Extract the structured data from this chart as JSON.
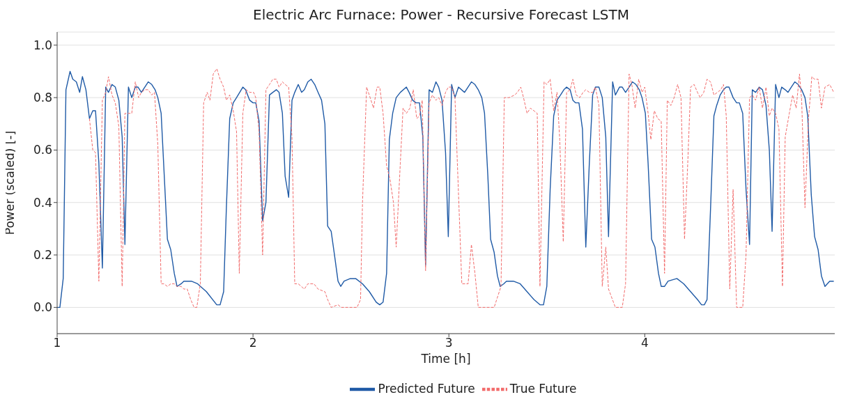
{
  "chart_data": {
    "type": "line",
    "title": "Electric Arc Furnace: Power - Recursive Forecast LSTM",
    "xlabel": "Time [h]",
    "ylabel": "Power (scaled) [-]",
    "xlim": [
      1,
      4.97
    ],
    "xticks": [
      1,
      2,
      3,
      4
    ],
    "ylim": [
      -0.1,
      1.05
    ],
    "yticks": [
      {
        "value": 0,
        "label": "0.0"
      },
      {
        "value": 0.2,
        "label": "0.2"
      },
      {
        "value": 0.4,
        "label": "0.4"
      },
      {
        "value": 0.6,
        "label": "0.6"
      },
      {
        "value": 0.8,
        "label": "0.8"
      },
      {
        "value": 1,
        "label": "1.0"
      }
    ],
    "grid": "y",
    "legend": "bottom",
    "marker": "none",
    "series": [
      {
        "name": "Predicted Future",
        "color": "#1f5aa6",
        "line_style": "solid",
        "x": [
          1.0,
          1.014,
          1.031,
          1.045,
          1.066,
          1.08,
          1.098,
          1.115,
          1.129,
          1.147,
          1.165,
          1.182,
          1.196,
          1.213,
          1.231,
          1.248,
          1.262,
          1.28,
          1.297,
          1.315,
          1.332,
          1.346,
          1.364,
          1.381,
          1.399,
          1.413,
          1.43,
          1.465,
          1.483,
          1.5,
          1.514,
          1.531,
          1.563,
          1.58,
          1.598,
          1.612,
          1.633,
          1.647,
          1.685,
          1.717,
          1.762,
          1.815,
          1.832,
          1.85,
          1.864,
          1.881,
          1.899,
          1.916,
          1.948,
          1.962,
          1.983,
          2.0,
          2.014,
          2.031,
          2.049,
          2.066,
          2.084,
          2.101,
          2.119,
          2.133,
          2.15,
          2.164,
          2.182,
          2.199,
          2.213,
          2.231,
          2.248,
          2.262,
          2.28,
          2.297,
          2.315,
          2.332,
          2.35,
          2.367,
          2.381,
          2.399,
          2.416,
          2.434,
          2.448,
          2.465,
          2.497,
          2.524,
          2.559,
          2.594,
          2.629,
          2.647,
          2.664,
          2.682,
          2.696,
          2.713,
          2.731,
          2.752,
          2.783,
          2.797,
          2.815,
          2.832,
          2.85,
          2.867,
          2.881,
          2.899,
          2.916,
          2.934,
          2.948,
          2.965,
          2.983,
          2.997,
          3.014,
          3.031,
          3.049,
          3.08,
          3.115,
          3.133,
          3.15,
          3.168,
          3.182,
          3.199,
          3.213,
          3.231,
          3.248,
          3.262,
          3.28,
          3.294,
          3.329,
          3.364,
          3.399,
          3.434,
          3.465,
          3.483,
          3.5,
          3.517,
          3.535,
          3.552,
          3.57,
          3.587,
          3.601,
          3.619,
          3.633,
          3.647,
          3.664,
          3.682,
          3.699,
          3.717,
          3.734,
          3.748,
          3.766,
          3.783,
          3.801,
          3.815,
          3.836,
          3.85,
          3.871,
          3.885,
          3.902,
          3.92,
          3.937,
          3.955,
          3.972,
          3.986,
          4.003,
          4.017,
          4.035,
          4.052,
          4.07,
          4.084,
          4.101,
          4.119,
          4.164,
          4.199,
          4.234,
          4.269,
          4.29,
          4.304,
          4.318,
          4.336,
          4.353,
          4.367,
          4.385,
          4.402,
          4.416,
          4.43,
          4.451,
          4.469,
          4.483,
          4.5,
          4.517,
          4.535,
          4.549,
          4.566,
          4.584,
          4.601,
          4.619,
          4.636,
          4.65,
          4.668,
          4.685,
          4.699,
          4.717,
          4.731,
          4.748,
          4.766,
          4.783,
          4.801,
          4.818,
          4.832,
          4.85,
          4.867,
          4.885,
          4.902,
          4.92,
          4.944,
          4.965
        ],
        "values": [
          0.0,
          0.0,
          0.11,
          0.83,
          0.9,
          0.87,
          0.86,
          0.82,
          0.88,
          0.83,
          0.72,
          0.75,
          0.75,
          0.55,
          0.15,
          0.84,
          0.82,
          0.85,
          0.84,
          0.79,
          0.65,
          0.24,
          0.84,
          0.8,
          0.84,
          0.84,
          0.82,
          0.86,
          0.85,
          0.83,
          0.8,
          0.74,
          0.26,
          0.22,
          0.13,
          0.08,
          0.09,
          0.1,
          0.1,
          0.09,
          0.06,
          0.01,
          0.01,
          0.06,
          0.38,
          0.72,
          0.78,
          0.8,
          0.84,
          0.83,
          0.79,
          0.78,
          0.78,
          0.71,
          0.33,
          0.4,
          0.81,
          0.82,
          0.83,
          0.82,
          0.74,
          0.5,
          0.42,
          0.79,
          0.82,
          0.85,
          0.82,
          0.83,
          0.86,
          0.87,
          0.85,
          0.82,
          0.79,
          0.7,
          0.31,
          0.29,
          0.2,
          0.1,
          0.08,
          0.1,
          0.11,
          0.11,
          0.09,
          0.06,
          0.02,
          0.01,
          0.02,
          0.13,
          0.64,
          0.74,
          0.8,
          0.82,
          0.84,
          0.82,
          0.79,
          0.78,
          0.78,
          0.65,
          0.16,
          0.83,
          0.82,
          0.86,
          0.84,
          0.79,
          0.59,
          0.27,
          0.85,
          0.8,
          0.84,
          0.82,
          0.86,
          0.85,
          0.83,
          0.8,
          0.74,
          0.5,
          0.26,
          0.21,
          0.12,
          0.08,
          0.09,
          0.1,
          0.1,
          0.09,
          0.06,
          0.03,
          0.01,
          0.01,
          0.08,
          0.45,
          0.73,
          0.79,
          0.81,
          0.83,
          0.84,
          0.83,
          0.79,
          0.78,
          0.78,
          0.68,
          0.23,
          0.55,
          0.81,
          0.84,
          0.84,
          0.8,
          0.65,
          0.27,
          0.86,
          0.81,
          0.84,
          0.84,
          0.82,
          0.84,
          0.86,
          0.85,
          0.83,
          0.8,
          0.74,
          0.55,
          0.26,
          0.23,
          0.13,
          0.08,
          0.08,
          0.1,
          0.11,
          0.09,
          0.06,
          0.03,
          0.01,
          0.01,
          0.03,
          0.38,
          0.73,
          0.77,
          0.81,
          0.83,
          0.84,
          0.84,
          0.8,
          0.78,
          0.78,
          0.74,
          0.45,
          0.24,
          0.83,
          0.82,
          0.84,
          0.83,
          0.77,
          0.6,
          0.29,
          0.85,
          0.8,
          0.84,
          0.83,
          0.82,
          0.84,
          0.86,
          0.85,
          0.83,
          0.8,
          0.73,
          0.43,
          0.27,
          0.22,
          0.12,
          0.08,
          0.1,
          0.1
        ]
      },
      {
        "name": "True Future",
        "color": "#f26b6b",
        "line_style": "dashed",
        "x": [
          1.165,
          1.182,
          1.196,
          1.213,
          1.231,
          1.248,
          1.262,
          1.28,
          1.297,
          1.315,
          1.332,
          1.346,
          1.364,
          1.381,
          1.399,
          1.416,
          1.43,
          1.448,
          1.465,
          1.483,
          1.497,
          1.514,
          1.531,
          1.545,
          1.563,
          1.58,
          1.598,
          1.612,
          1.633,
          1.647,
          1.664,
          1.682,
          1.699,
          1.713,
          1.731,
          1.748,
          1.766,
          1.78,
          1.797,
          1.815,
          1.832,
          1.85,
          1.864,
          1.881,
          1.899,
          1.916,
          1.93,
          1.948,
          1.965,
          1.983,
          2.003,
          2.014,
          2.031,
          2.049,
          2.066,
          2.084,
          2.101,
          2.119,
          2.133,
          2.15,
          2.164,
          2.182,
          2.199,
          2.213,
          2.231,
          2.262,
          2.28,
          2.311,
          2.332,
          2.367,
          2.381,
          2.399,
          2.434,
          2.451,
          2.531,
          2.549,
          2.559,
          2.58,
          2.598,
          2.615,
          2.633,
          2.647,
          2.664,
          2.682,
          2.699,
          2.717,
          2.731,
          2.752,
          2.766,
          2.783,
          2.801,
          2.818,
          2.836,
          2.85,
          2.864,
          2.881,
          2.899,
          2.916,
          2.934,
          2.948,
          2.965,
          2.983,
          2.997,
          3.014,
          3.031,
          3.066,
          3.098,
          3.115,
          3.133,
          3.15,
          3.231,
          3.266,
          3.283,
          3.308,
          3.336,
          3.35,
          3.367,
          3.381,
          3.399,
          3.416,
          3.434,
          3.451,
          3.465,
          3.486,
          3.5,
          3.517,
          3.535,
          3.552,
          3.566,
          3.584,
          3.601,
          3.619,
          3.633,
          3.65,
          3.668,
          3.685,
          3.699,
          3.717,
          3.734,
          3.748,
          3.766,
          3.783,
          3.801,
          3.815,
          3.85,
          3.885,
          3.902,
          3.92,
          3.934,
          3.951,
          3.969,
          3.986,
          4.0,
          4.017,
          4.031,
          4.049,
          4.066,
          4.084,
          4.101,
          4.115,
          4.133,
          4.15,
          4.168,
          4.185,
          4.203,
          4.22,
          4.234,
          4.252,
          4.269,
          4.283,
          4.301,
          4.318,
          4.336,
          4.353,
          4.371,
          4.388,
          4.402,
          4.416,
          4.434,
          4.451,
          4.469,
          4.5,
          4.517,
          4.535,
          4.549,
          4.566,
          4.584,
          4.601,
          4.619,
          4.636,
          4.65,
          4.668,
          4.685,
          4.703,
          4.717,
          4.738,
          4.755,
          4.773,
          4.79,
          4.801,
          4.818,
          4.836,
          4.853,
          4.867,
          4.885,
          4.902,
          4.92,
          4.944,
          4.965
        ],
        "values": [
          0.72,
          0.6,
          0.59,
          0.1,
          0.79,
          0.82,
          0.88,
          0.81,
          0.78,
          0.69,
          0.08,
          0.74,
          0.74,
          0.74,
          0.86,
          0.8,
          0.82,
          0.83,
          0.83,
          0.81,
          0.82,
          0.62,
          0.09,
          0.09,
          0.08,
          0.09,
          0.09,
          0.08,
          0.08,
          0.07,
          0.07,
          0.03,
          0.0,
          0.0,
          0.09,
          0.78,
          0.82,
          0.79,
          0.89,
          0.91,
          0.87,
          0.84,
          0.79,
          0.81,
          0.75,
          0.67,
          0.13,
          0.74,
          0.83,
          0.82,
          0.82,
          0.8,
          0.67,
          0.2,
          0.83,
          0.85,
          0.87,
          0.87,
          0.84,
          0.86,
          0.85,
          0.84,
          0.65,
          0.09,
          0.09,
          0.07,
          0.09,
          0.09,
          0.07,
          0.06,
          0.03,
          0.0,
          0.01,
          0.0,
          0.0,
          0.03,
          0.4,
          0.84,
          0.8,
          0.76,
          0.84,
          0.84,
          0.74,
          0.54,
          0.49,
          0.4,
          0.23,
          0.55,
          0.76,
          0.74,
          0.76,
          0.83,
          0.72,
          0.73,
          0.79,
          0.14,
          0.78,
          0.81,
          0.79,
          0.8,
          0.77,
          0.82,
          0.84,
          0.84,
          0.8,
          0.09,
          0.09,
          0.24,
          0.13,
          0.0,
          0.0,
          0.08,
          0.8,
          0.8,
          0.81,
          0.82,
          0.84,
          0.8,
          0.74,
          0.76,
          0.75,
          0.74,
          0.08,
          0.86,
          0.85,
          0.87,
          0.75,
          0.82,
          0.64,
          0.25,
          0.82,
          0.83,
          0.87,
          0.81,
          0.8,
          0.82,
          0.83,
          0.82,
          0.82,
          0.84,
          0.77,
          0.08,
          0.23,
          0.07,
          0.0,
          0.0,
          0.09,
          0.89,
          0.85,
          0.76,
          0.87,
          0.82,
          0.84,
          0.74,
          0.64,
          0.75,
          0.72,
          0.71,
          0.13,
          0.79,
          0.77,
          0.8,
          0.85,
          0.8,
          0.26,
          0.56,
          0.84,
          0.85,
          0.82,
          0.8,
          0.82,
          0.87,
          0.86,
          0.81,
          0.82,
          0.83,
          0.85,
          0.73,
          0.07,
          0.45,
          0.0,
          0.0,
          0.2,
          0.8,
          0.81,
          0.79,
          0.84,
          0.76,
          0.84,
          0.73,
          0.76,
          0.74,
          0.68,
          0.08,
          0.65,
          0.74,
          0.81,
          0.76,
          0.89,
          0.79,
          0.38,
          0.72,
          0.88,
          0.87,
          0.87,
          0.76,
          0.84,
          0.85,
          0.82
        ]
      }
    ]
  }
}
